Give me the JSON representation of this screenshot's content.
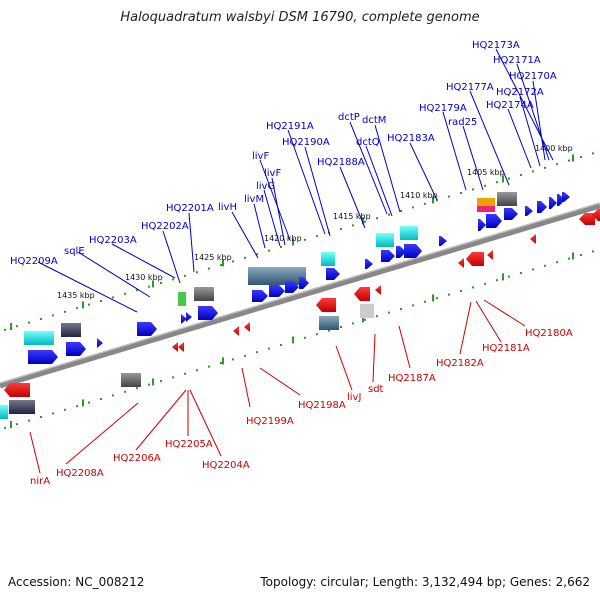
{
  "title": "Haloquadratum walsbyi DSM 16790, complete genome",
  "accession": "Accession: NC_008212",
  "topology": "Topology: circular; Length: 3,132,494 bp; Genes: 2,662",
  "colors": {
    "upper_gene": "#0000ee",
    "lower_gene": "#ee0000",
    "upper_label": "#0000cc",
    "lower_label": "#cc0000",
    "backbone": "#888888",
    "tick": "#2a9a2a"
  },
  "kbp_labels": [
    "1435 kbp",
    "1430 kbp",
    "1425 kbp",
    "1420 kbp",
    "1415 kbp",
    "1410 kbp",
    "1405 kbp",
    "1400 kbp"
  ],
  "upper_labels": [
    "HQ2209A",
    "sqlE",
    "HQ2203A",
    "HQ2202A",
    "HQ2201A",
    "livH",
    "livM",
    "livG",
    "livF",
    "livF",
    "HQ2191A",
    "HQ2190A",
    "HQ2188A",
    "dctP",
    "dctQ",
    "dctM",
    "HQ2183A",
    "HQ2179A",
    "rad25",
    "HQ2177A",
    "HQ2174A",
    "HQ2172A",
    "HQ2170A",
    "HQ2171A",
    "HQ2173A"
  ],
  "lower_labels": [
    "nirA",
    "HQ2208A",
    "HQ2206A",
    "HQ2205A",
    "HQ2204A",
    "HQ2199A",
    "HQ2198A",
    "livJ",
    "sdt",
    "HQ2187A",
    "HQ2182A",
    "HQ2181A",
    "HQ2180A"
  ]
}
